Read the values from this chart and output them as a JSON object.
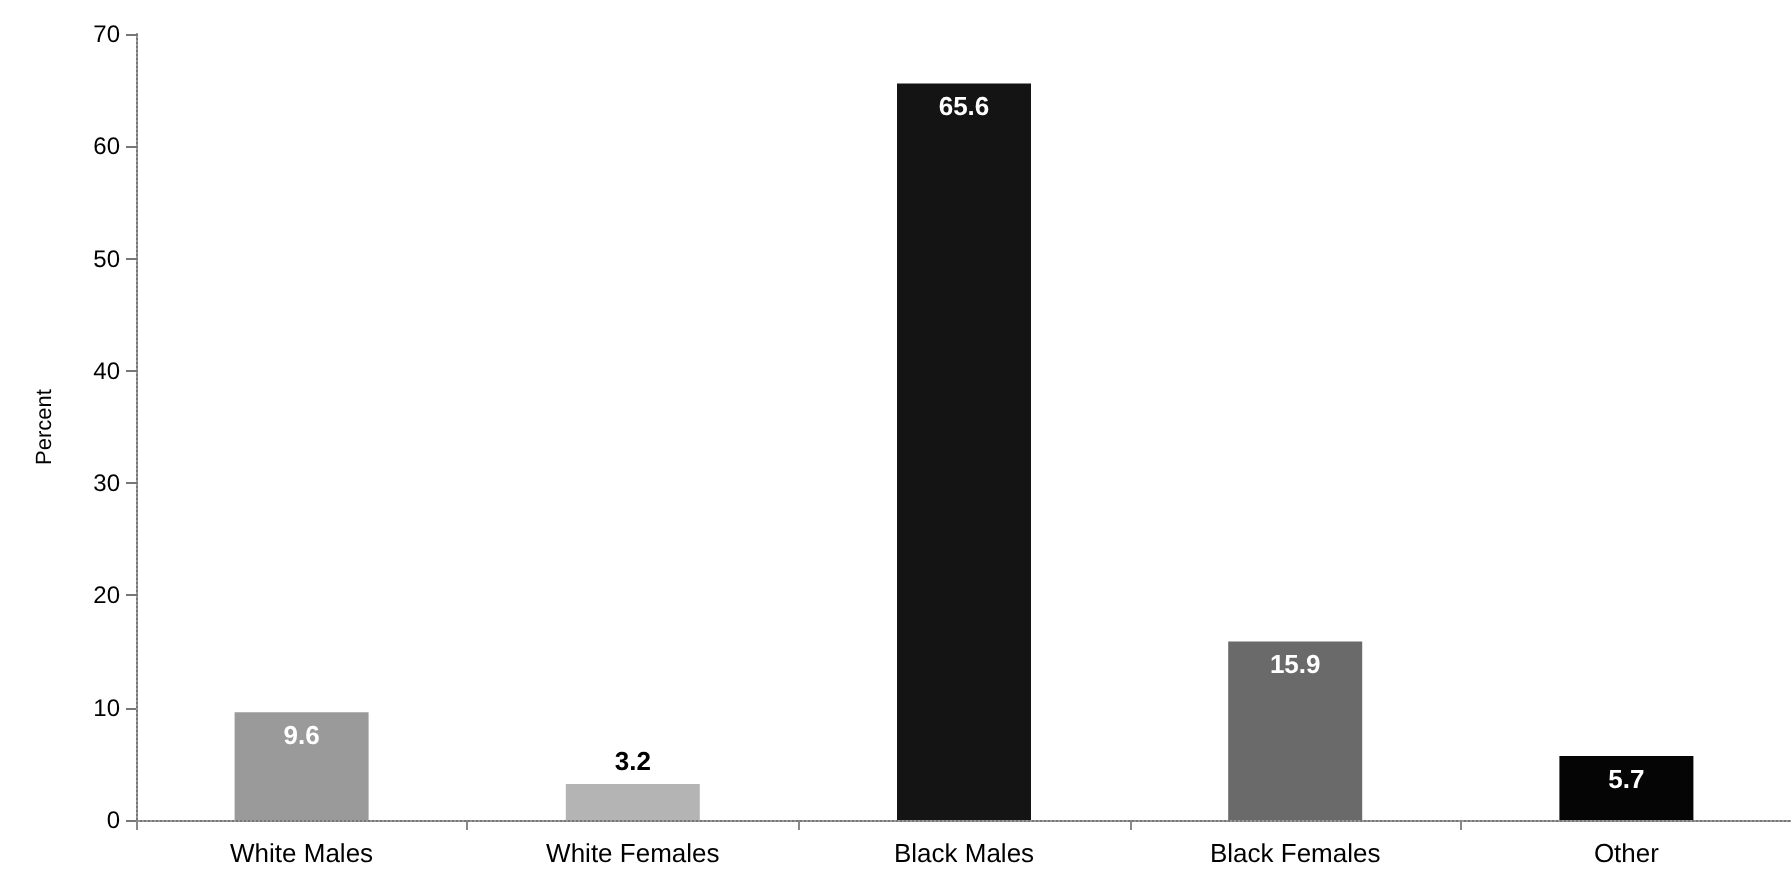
{
  "chart_data": {
    "type": "bar",
    "ylabel": "Percent",
    "categories": [
      "White Males",
      "White Females",
      "Black Males",
      "Black Females",
      "Other"
    ],
    "values": [
      9.6,
      3.2,
      65.6,
      15.9,
      5.7
    ],
    "colors": [
      "#9a9a9a",
      "#b4b4b4",
      "#141414",
      "#6a6a6a",
      "#050505"
    ],
    "ylim": [
      0,
      70
    ],
    "yticks": [
      0,
      10,
      20,
      30,
      40,
      50,
      60,
      70
    ],
    "data_labels": true
  }
}
